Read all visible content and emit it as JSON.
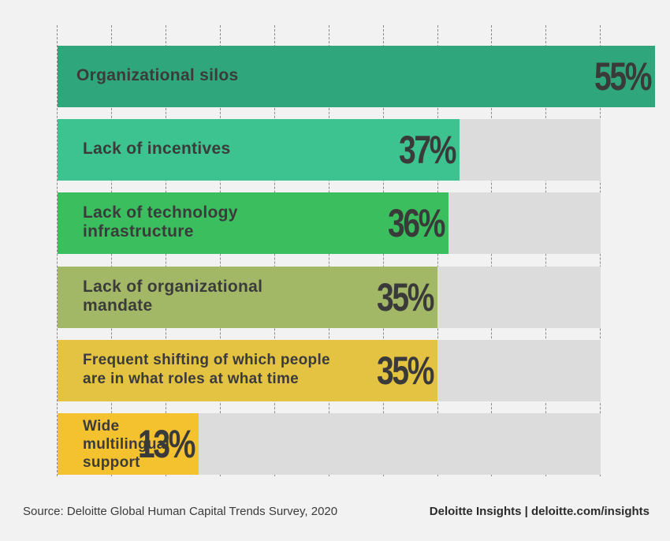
{
  "chart_data": {
    "type": "bar",
    "orientation": "horizontal",
    "categories": [
      "Organizational silos",
      "Lack of incentives",
      "Lack of technology infrastructure",
      "Lack of organizational mandate",
      "Frequent shifting of which people are in what roles at what time",
      "Wide multilingual support"
    ],
    "label_lines": [
      [
        "Organizational silos"
      ],
      [
        "Lack of incentives"
      ],
      [
        "Lack of technology",
        "infrastructure"
      ],
      [
        "Lack of organizational",
        "mandate"
      ],
      [
        "Frequent shifting of which people",
        "are in what roles at what time"
      ],
      [
        "Wide",
        "multilingual",
        "support"
      ]
    ],
    "values": [
      55,
      37,
      36,
      35,
      35,
      13
    ],
    "value_labels": [
      "55%",
      "37%",
      "36%",
      "35%",
      "35%",
      "13%"
    ],
    "colors": [
      "#2fa67b",
      "#3dc38f",
      "#3bbf5e",
      "#a3b866",
      "#e3c341",
      "#f5c22f"
    ],
    "xlim": [
      0,
      50
    ],
    "grid": true,
    "title": "",
    "xlabel": "",
    "ylabel": ""
  },
  "footer": {
    "source": "Source: Deloitte Global Human Capital Trends Survey, 2020",
    "brand": "Deloitte Insights | deloitte.com/insights"
  }
}
